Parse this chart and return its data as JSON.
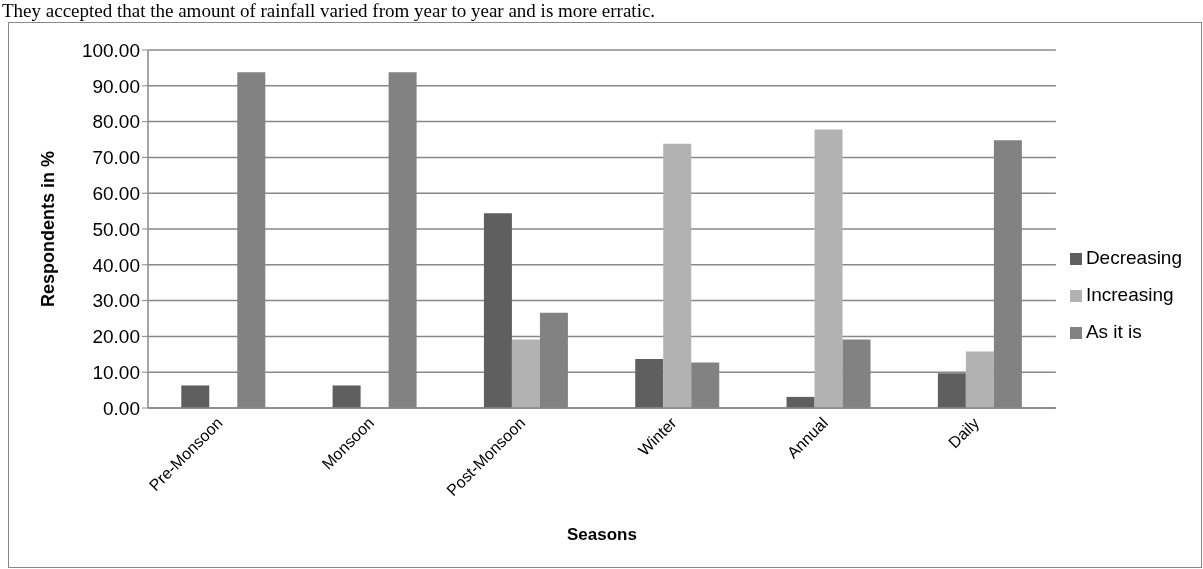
{
  "chart_data": {
    "type": "bar",
    "annotations": [
      "They accepted that the amount of rainfall varied from year to year and is more erratic."
    ],
    "xlabel": "Seasons",
    "ylabel": "Respondents in %",
    "categories": [
      "Pre-Monsoon",
      "Monsoon",
      "Post-Monsoon",
      "Winter",
      "Annual",
      "Daily"
    ],
    "series": [
      {
        "name": "Decreasing",
        "color": "#5f5f5f",
        "values": [
          6.3,
          6.3,
          54.4,
          13.7,
          3.1,
          9.7
        ]
      },
      {
        "name": "Increasing",
        "color": "#b2b2b2",
        "values": [
          0,
          0,
          19.1,
          73.8,
          77.8,
          15.8
        ]
      },
      {
        "name": "As it is",
        "color": "#828282",
        "values": [
          93.8,
          93.8,
          26.6,
          12.7,
          19.1,
          74.8
        ]
      }
    ],
    "ylim": [
      0,
      100
    ],
    "yticks": [
      {
        "value": 0,
        "label": "0.00"
      },
      {
        "value": 10,
        "label": "10.00"
      },
      {
        "value": 20,
        "label": "20.00"
      },
      {
        "value": 30,
        "label": "30.00"
      },
      {
        "value": 40,
        "label": "40.00"
      },
      {
        "value": 50,
        "label": "50.00"
      },
      {
        "value": 60,
        "label": "60.00"
      },
      {
        "value": 70,
        "label": "70.00"
      },
      {
        "value": 80,
        "label": "80.00"
      },
      {
        "value": 90,
        "label": "90.00"
      },
      {
        "value": 100,
        "label": "100.00"
      }
    ],
    "grid": "y",
    "legend": "right"
  }
}
